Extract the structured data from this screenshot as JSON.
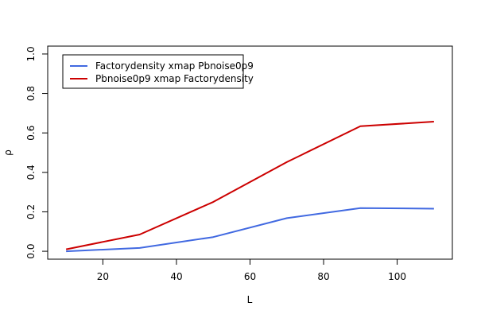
{
  "chart_data": {
    "type": "line",
    "xlabel": "L",
    "ylabel": "ρ",
    "xlim": [
      5,
      115
    ],
    "ylim": [
      -0.04,
      1.04
    ],
    "x_ticks": [
      20,
      40,
      60,
      80,
      100
    ],
    "y_ticks": [
      0.0,
      0.2,
      0.4,
      0.6,
      0.8,
      1.0
    ],
    "x_tick_labels": [
      "20",
      "40",
      "60",
      "80",
      "100"
    ],
    "y_tick_labels": [
      "0.0",
      "0.2",
      "0.4",
      "0.6",
      "0.8",
      "1.0"
    ],
    "legend_position": "top-left",
    "grid": false,
    "series": [
      {
        "name": "Factorydensity xmap Pbnoise0p9",
        "color": "#4169E1",
        "x": [
          10,
          30,
          50,
          70,
          90,
          110
        ],
        "y": [
          0.0,
          0.017,
          0.072,
          0.168,
          0.219,
          0.216
        ]
      },
      {
        "name": "Pbnoise0p9 xmap Factorydensity",
        "color": "#CC0000",
        "x": [
          10,
          30,
          50,
          70,
          90,
          110
        ],
        "y": [
          0.01,
          0.085,
          0.25,
          0.452,
          0.634,
          0.657
        ]
      }
    ]
  }
}
